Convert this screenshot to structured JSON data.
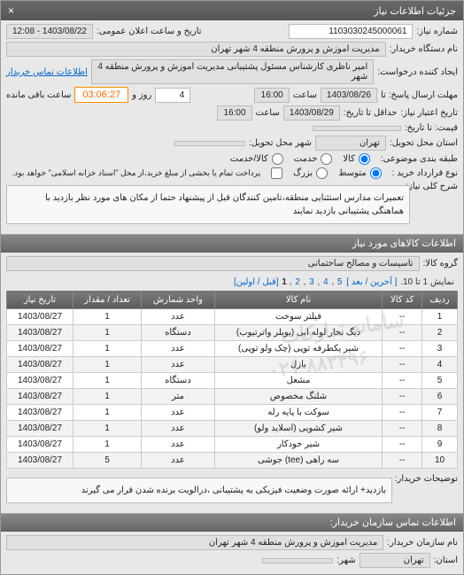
{
  "window_title": "جزئیات اطلاعات نیاز",
  "close_label": "×",
  "fields": {
    "req_number_label": "شماره نیاز:",
    "req_number": "1103030245000061",
    "announce_label": "تاریخ و ساعت اعلان عمومی:",
    "announce_value": "1403/08/22 - 12:08",
    "buyer_org_label": "نام دستگاه خریدار:",
    "buyer_org": "مدیریت اموزش و پرورش منطقه 4 شهر تهران",
    "requester_label": "ایجاد کننده درخواست:",
    "requester": "امیر ناظری کارشناس مسئول پشتیبانی   مدیریت اموزش و پرورش منطقه 4 شهر",
    "contact_link": "اطلاعات تماس خریدار",
    "deadline_label": "مهلت ارسال پاسخ: تا",
    "deadline_date": "1403/08/26",
    "time_label": "ساعت",
    "deadline_time": "16:00",
    "days_remaining": "4",
    "days_suffix": "روز و",
    "countdown": "03:06:27",
    "remain_suffix": "ساعت باقی مانده",
    "validity_from_label": "تاریخ اعتبار نیاز:",
    "validity_to_label": "حداقل تا تاریخ:",
    "validity_date": "1403/08/29",
    "validity_time": "16:00",
    "price_label": "قیمت: تا تاریخ:",
    "delivery_loc_label": "استان محل تحویل:",
    "delivery_loc": "تهران",
    "city_label": "شهر محل تحویل:",
    "budget_label": "طبقه بندی موضوعی:",
    "budget_opts": [
      "کالا",
      "خدمت",
      "کالا/خدمت"
    ],
    "contract_label": "نوع قرارداد خرید :",
    "contract_opts": [
      "متوسط",
      "بزرگ"
    ],
    "contract_note": "پرداخت تمام یا بخشی از مبلغ خرید،از محل \"اسناد خزانه اسلامی\" خواهد بود.",
    "desc_label": "شرح کلی نیاز:",
    "desc": "تعمیرات مدارس استثنایی منطقه،تامین کنندگان قبل از پیشنهاد حتما از مکان های مورد نظر بازدید با هماهنگی پشتیبانی بازدید نمایند",
    "buyer_note_label": "توضیحات خریدار:",
    "buyer_note": "بازدید+ ارائه صورت وضعیت فیزیکی به پشتیبانی ،درالویت برنده شدن قرار می گیرند"
  },
  "section_goods_title": "اطلاعات کالاهای مورد نیاز",
  "group_label": "گروه کالا:",
  "group_value": "تاسیسات و مصالح ساختمانی",
  "pager_text": "نمایش 1 تا 10.",
  "pager_links": [
    "[ آخرین / بعد ]",
    "5",
    "4",
    "3",
    "2",
    "1",
    "[قبل / اولین]"
  ],
  "table": {
    "headers": [
      "ردیف",
      "کد کالا",
      "نام کالا",
      "واحد شمارش",
      "تعداد / مقدار",
      "تاریخ نیاز"
    ],
    "rows": [
      [
        "1",
        "--",
        "فیلتر سوخت",
        "عدد",
        "1",
        "1403/08/27"
      ],
      [
        "2",
        "--",
        "دیگ بخار لوله ایی (بویلر واترتیوب)",
        "دستگاه",
        "1",
        "1403/08/27"
      ],
      [
        "3",
        "--",
        "شیر یکطرفه توپی (چک ولو توپی)",
        "عدد",
        "1",
        "1403/08/27"
      ],
      [
        "4",
        "--",
        "بازل",
        "عدد",
        "1",
        "1403/08/27"
      ],
      [
        "5",
        "--",
        "مشعل",
        "دستگاه",
        "1",
        "1403/08/27"
      ],
      [
        "6",
        "--",
        "شلنگ مخصوص",
        "متر",
        "1",
        "1403/08/27"
      ],
      [
        "7",
        "--",
        "سوکت با پایه رله",
        "عدد",
        "1",
        "1403/08/27"
      ],
      [
        "8",
        "--",
        "شیر کشویی (اسلاید ولو)",
        "عدد",
        "1",
        "1403/08/27"
      ],
      [
        "9",
        "--",
        "شیر خودکار",
        "عدد",
        "1",
        "1403/08/27"
      ],
      [
        "10",
        "--",
        "سه راهی (tee) جوشی",
        "عدد",
        "5",
        "1403/08/27"
      ]
    ]
  },
  "footer": {
    "title": "اطلاعات تماس سازمان خریدار:",
    "org_label": "نام سازمان خریدار:",
    "org": "مدیریت اموزش و پرورش منطقه 4 شهر تهران",
    "province_label": "استان:",
    "province": "تهران",
    "city_label": "شهر:"
  },
  "watermark1": "سامانه تدارکات",
  "watermark2": "۰۲۱-۸۸۳۴۹۶"
}
